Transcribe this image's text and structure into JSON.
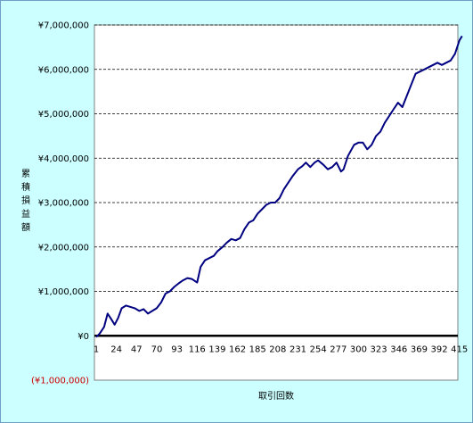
{
  "chart_data": {
    "type": "line",
    "title": "",
    "xlabel": "取引回数",
    "ylabel": "累積損益額",
    "x_ticks": [
      1,
      24,
      47,
      70,
      93,
      116,
      139,
      162,
      185,
      208,
      231,
      254,
      277,
      300,
      323,
      346,
      369,
      392,
      415
    ],
    "y_ticks": [
      {
        "value": 7000000,
        "label": "¥7,000,000"
      },
      {
        "value": 6000000,
        "label": "¥6,000,000"
      },
      {
        "value": 5000000,
        "label": "¥5,000,000"
      },
      {
        "value": 4000000,
        "label": "¥4,000,000"
      },
      {
        "value": 3000000,
        "label": "¥3,000,000"
      },
      {
        "value": 2000000,
        "label": "¥2,000,000"
      },
      {
        "value": 1000000,
        "label": "¥1,000,000"
      },
      {
        "value": 0,
        "label": "¥0"
      },
      {
        "value": -1000000,
        "label": "(¥1,000,000)"
      }
    ],
    "ylim": [
      -1000000,
      7000000
    ],
    "xlim": [
      1,
      420
    ],
    "grid": true,
    "series": [
      {
        "color": "#000080",
        "x": [
          1,
          5,
          10,
          14,
          18,
          22,
          26,
          30,
          35,
          40,
          45,
          50,
          55,
          60,
          65,
          70,
          75,
          80,
          85,
          90,
          95,
          100,
          105,
          110,
          116,
          120,
          125,
          130,
          135,
          139,
          145,
          150,
          155,
          160,
          165,
          170,
          175,
          180,
          185,
          190,
          195,
          200,
          205,
          210,
          215,
          220,
          225,
          231,
          236,
          240,
          245,
          250,
          254,
          260,
          265,
          270,
          275,
          280,
          283,
          288,
          295,
          300,
          305,
          310,
          315,
          320,
          325,
          330,
          335,
          340,
          345,
          350,
          355,
          360,
          365,
          370,
          375,
          380,
          385,
          390,
          395,
          400,
          405,
          410,
          415,
          418
        ],
        "y": [
          -30000,
          50000,
          200000,
          500000,
          380000,
          250000,
          400000,
          620000,
          680000,
          650000,
          620000,
          560000,
          600000,
          500000,
          560000,
          620000,
          750000,
          950000,
          1000000,
          1100000,
          1180000,
          1250000,
          1300000,
          1280000,
          1200000,
          1550000,
          1700000,
          1750000,
          1800000,
          1900000,
          2000000,
          2100000,
          2180000,
          2150000,
          2200000,
          2400000,
          2550000,
          2600000,
          2750000,
          2850000,
          2950000,
          3000000,
          3000000,
          3100000,
          3300000,
          3450000,
          3600000,
          3750000,
          3820000,
          3900000,
          3800000,
          3900000,
          3950000,
          3850000,
          3750000,
          3800000,
          3900000,
          3700000,
          3750000,
          4050000,
          4300000,
          4350000,
          4350000,
          4200000,
          4300000,
          4500000,
          4600000,
          4800000,
          4950000,
          5100000,
          5250000,
          5150000,
          5400000,
          5650000,
          5900000,
          5950000,
          6000000,
          6050000,
          6100000,
          6150000,
          6100000,
          6150000,
          6200000,
          6350000,
          6650000,
          6750000
        ]
      }
    ]
  }
}
